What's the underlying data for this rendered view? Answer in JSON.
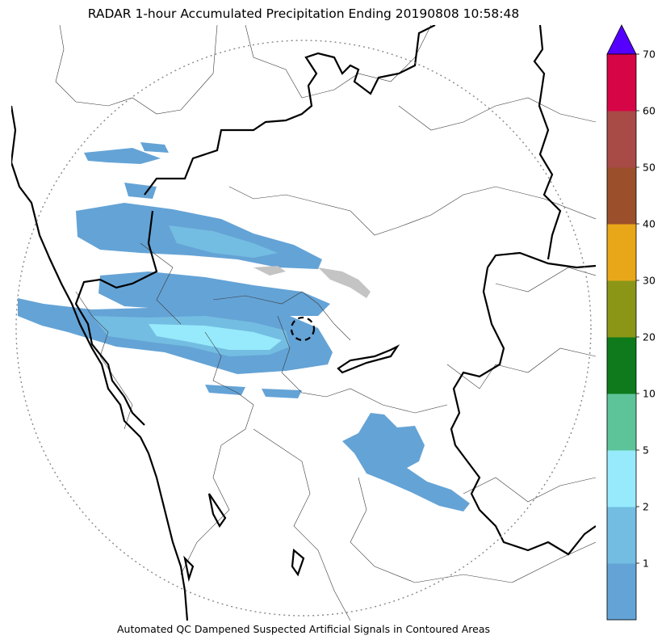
{
  "title": "RADAR 1-hour Accumulated Precipitation Ending 20190808 10:58:48",
  "footer": "Automated QC Dampened Suspected Artificial Signals in Contoured Areas",
  "colorbar": {
    "ticks": [
      "1",
      "2",
      "5",
      "10",
      "20",
      "30",
      "40",
      "50",
      "60",
      "70"
    ],
    "bands": [
      "#64a3d6",
      "#74bde2",
      "#96eafb",
      "#5dc49a",
      "#0e7a1c",
      "#8b9617",
      "#e8a718",
      "#9b4f2a",
      "#a84a46",
      "#d60545"
    ],
    "extend_color": "#5500ff"
  },
  "palette": {
    "rain_light": "#64a3d6",
    "rain_mid": "#74bde2",
    "rain_heavy": "#96eafb",
    "clutter": "#c4c4c4",
    "border_thick": "#000000",
    "border_thin": "#3a3a3a",
    "range_ring": "#888888"
  }
}
